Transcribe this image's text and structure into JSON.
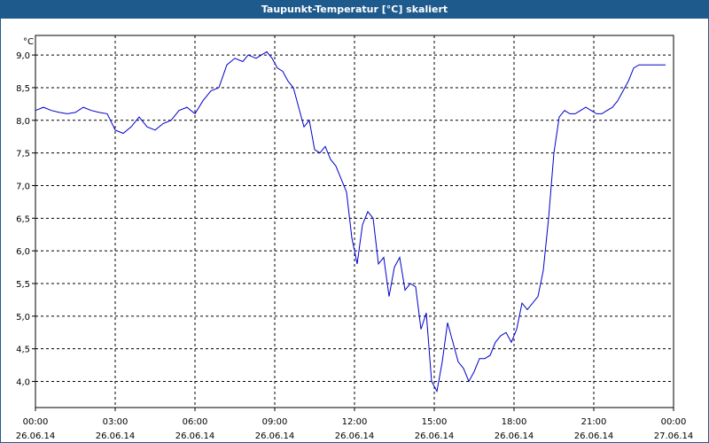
{
  "window": {
    "title": "Taupunkt-Temperatur [°C] skaliert"
  },
  "colors": {
    "title_bar": "#1e5a8c",
    "line": "#0000cc",
    "grid": "#000000",
    "background": "#ffffff"
  },
  "chart_data": {
    "type": "line",
    "title": "Taupunkt-Temperatur [°C] skaliert",
    "ylabel": "°C",
    "xlabel": "",
    "ylim": [
      3.6,
      9.3
    ],
    "xlim": [
      0,
      24
    ],
    "grid": true,
    "legend": "none",
    "y_ticks": [
      "9,0",
      "8,5",
      "8,0",
      "7,5",
      "7,0",
      "6,5",
      "6,0",
      "5,5",
      "5,0",
      "4,5",
      "4,0"
    ],
    "y_tick_values": [
      9.0,
      8.5,
      8.0,
      7.5,
      7.0,
      6.5,
      6.0,
      5.5,
      5.0,
      4.5,
      4.0
    ],
    "x_ticks": [
      {
        "time": "00:00",
        "date": "26.06.14"
      },
      {
        "time": "03:00",
        "date": "26.06.14"
      },
      {
        "time": "06:00",
        "date": "26.06.14"
      },
      {
        "time": "09:00",
        "date": "26.06.14"
      },
      {
        "time": "12:00",
        "date": "26.06.14"
      },
      {
        "time": "15:00",
        "date": "26.06.14"
      },
      {
        "time": "18:00",
        "date": "26.06.14"
      },
      {
        "time": "21:00",
        "date": "26.06.14"
      },
      {
        "time": "00:00",
        "date": "27.06.14"
      }
    ],
    "x_tick_hours": [
      0,
      3,
      6,
      9,
      12,
      15,
      18,
      21,
      24
    ],
    "series": [
      {
        "x": [
          0,
          0.3,
          0.6,
          0.9,
          1.2,
          1.5,
          1.8,
          2.1,
          2.4,
          2.7,
          3.0,
          3.3,
          3.6,
          3.9,
          4.2,
          4.5,
          4.8,
          5.1,
          5.4,
          5.7,
          6.0,
          6.3,
          6.6,
          6.9,
          7.2,
          7.5,
          7.8,
          8.0,
          8.3,
          8.5,
          8.7,
          8.9,
          9.1,
          9.3,
          9.5,
          9.7,
          9.9,
          10.1,
          10.3,
          10.5,
          10.7,
          10.9,
          11.1,
          11.3,
          11.5,
          11.7,
          11.9,
          12.1,
          12.3,
          12.5,
          12.7,
          12.9,
          13.1,
          13.3,
          13.5,
          13.7,
          13.9,
          14.1,
          14.3,
          14.5,
          14.7,
          14.9,
          15.1,
          15.3,
          15.5,
          15.7,
          15.9,
          16.1,
          16.3,
          16.5,
          16.7,
          16.9,
          17.1,
          17.3,
          17.5,
          17.7,
          17.9,
          18.1,
          18.3,
          18.5,
          18.7,
          18.9,
          19.1,
          19.3,
          19.5,
          19.7,
          19.9,
          20.1,
          20.3,
          20.5,
          20.7,
          20.9,
          21.1,
          21.3,
          21.5,
          21.7,
          21.9,
          22.1,
          22.3,
          22.5,
          22.7,
          22.9,
          23.1,
          23.3,
          23.5,
          23.7
        ],
        "y": [
          8.15,
          8.2,
          8.15,
          8.12,
          8.1,
          8.12,
          8.2,
          8.15,
          8.12,
          8.1,
          7.85,
          7.8,
          7.9,
          8.05,
          7.9,
          7.85,
          7.95,
          8.0,
          8.15,
          8.2,
          8.1,
          8.3,
          8.45,
          8.5,
          8.85,
          8.95,
          8.9,
          9.0,
          8.95,
          9.0,
          9.05,
          8.95,
          8.8,
          8.75,
          8.6,
          8.5,
          8.2,
          7.9,
          8.0,
          7.55,
          7.5,
          7.6,
          7.4,
          7.3,
          7.1,
          6.9,
          6.2,
          5.8,
          6.4,
          6.6,
          6.5,
          5.8,
          5.9,
          5.3,
          5.75,
          5.9,
          5.4,
          5.5,
          5.45,
          4.8,
          5.05,
          4.0,
          3.85,
          4.3,
          4.9,
          4.6,
          4.3,
          4.2,
          4.0,
          4.15,
          4.35,
          4.35,
          4.4,
          4.6,
          4.7,
          4.75,
          4.6,
          4.8,
          5.2,
          5.1,
          5.2,
          5.3,
          5.7,
          6.5,
          7.5,
          8.05,
          8.15,
          8.1,
          8.1,
          8.15,
          8.2,
          8.15,
          8.1,
          8.1,
          8.15,
          8.2,
          8.3,
          8.45,
          8.6,
          8.8,
          8.85,
          8.85,
          8.85,
          8.85,
          8.85,
          8.85
        ]
      }
    ]
  }
}
